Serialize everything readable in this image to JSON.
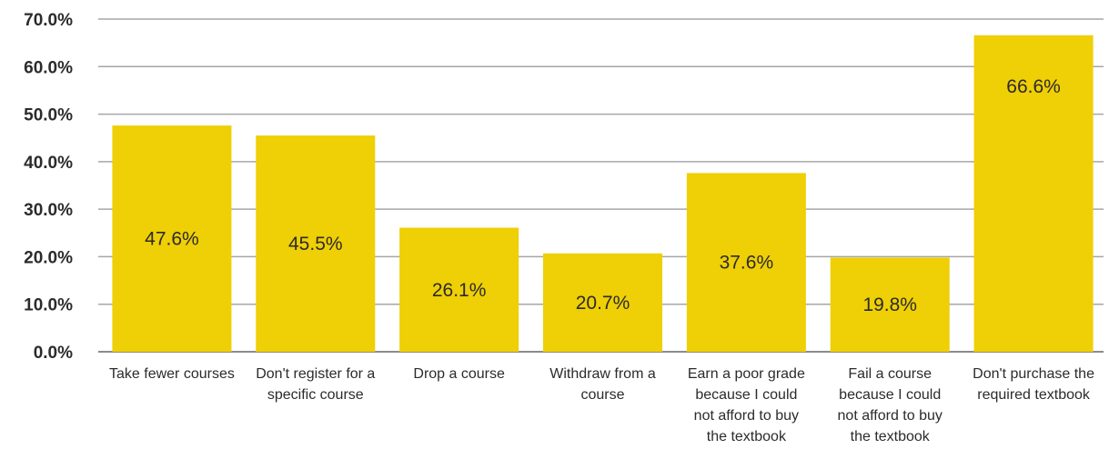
{
  "chart_data": {
    "type": "bar",
    "title": "",
    "xlabel": "",
    "ylabel": "",
    "ylim": [
      0,
      70
    ],
    "y_ticks": [
      "0.0%",
      "10.0%",
      "20.0%",
      "30.0%",
      "40.0%",
      "50.0%",
      "60.0%",
      "70.0%"
    ],
    "grid": true,
    "bar_color": "#efcf05",
    "categories": [
      [
        "Take fewer courses"
      ],
      [
        "Don't register for a",
        "specific course"
      ],
      [
        "Drop a course"
      ],
      [
        "Withdraw from a",
        "course"
      ],
      [
        "Earn a poor grade",
        "because I could",
        "not afford to buy",
        "the textbook"
      ],
      [
        "Fail a course",
        "because I could",
        "not afford to buy",
        "the textbook"
      ],
      [
        "Don't purchase the",
        "required textbook"
      ]
    ],
    "values": [
      47.6,
      45.5,
      26.1,
      20.7,
      37.6,
      19.8,
      66.6
    ],
    "data_labels": [
      "47.6%",
      "45.5%",
      "26.1%",
      "20.7%",
      "37.6%",
      "19.8%",
      "66.6%"
    ]
  }
}
